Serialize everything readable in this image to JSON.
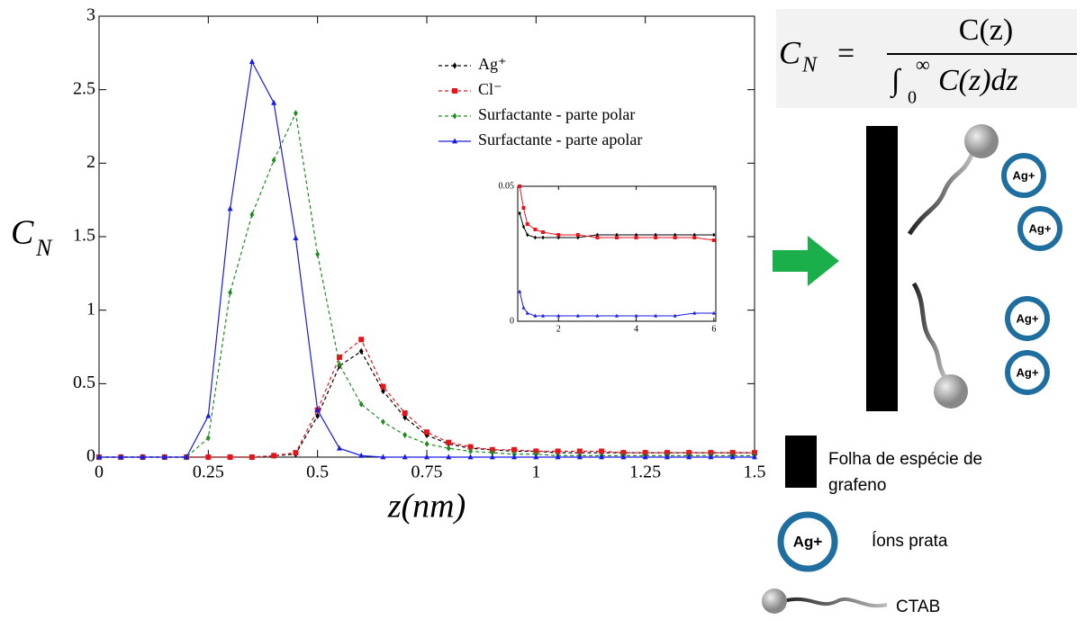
{
  "chart_data": [
    {
      "type": "line",
      "x_label": "z(nm)",
      "y_label": {
        "main": "C",
        "sub": "N"
      },
      "x": [
        0,
        0.05,
        0.1,
        0.15,
        0.2,
        0.25,
        0.3,
        0.35,
        0.4,
        0.45,
        0.5,
        0.55,
        0.6,
        0.65,
        0.7,
        0.75,
        0.8,
        0.85,
        0.9,
        0.95,
        1,
        1.05,
        1.1,
        1.15,
        1.2,
        1.25,
        1.3,
        1.35,
        1.4,
        1.45,
        1.5
      ],
      "series": [
        {
          "name": "Ag⁺",
          "color": "#000000",
          "dash": true,
          "marker": "diamond",
          "values": [
            0,
            0,
            0,
            0,
            0,
            0,
            0,
            0,
            0.01,
            0.02,
            0.28,
            0.62,
            0.72,
            0.45,
            0.27,
            0.15,
            0.09,
            0.06,
            0.05,
            0.04,
            0.04,
            0.03,
            0.03,
            0.03,
            0.03,
            0.03,
            0.03,
            0.03,
            0.03,
            0.03,
            0.03
          ]
        },
        {
          "name": "Cl⁻",
          "color": "#e8141c",
          "dash": true,
          "marker": "square",
          "values": [
            0,
            0,
            0,
            0,
            0,
            0,
            0,
            0,
            0.01,
            0.03,
            0.32,
            0.68,
            0.8,
            0.48,
            0.3,
            0.17,
            0.1,
            0.07,
            0.05,
            0.05,
            0.04,
            0.04,
            0.04,
            0.04,
            0.03,
            0.03,
            0.03,
            0.03,
            0.03,
            0.03,
            0.03
          ]
        },
        {
          "name": "Surfactante - parte polar",
          "color": "#1e8c1e",
          "dash": true,
          "marker": "diamond",
          "values": [
            0,
            0,
            0,
            0,
            0,
            0.13,
            1.12,
            1.65,
            2.02,
            2.34,
            1.38,
            0.63,
            0.36,
            0.24,
            0.15,
            0.09,
            0.06,
            0.04,
            0.03,
            0.02,
            0.02,
            0.01,
            0.01,
            0.01,
            0.01,
            0.01,
            0.01,
            0.01,
            0.01,
            0.01,
            0.01
          ]
        },
        {
          "name": "Surfactante - parte apolar",
          "color": "#1a1ae6",
          "dash": false,
          "marker": "triangle",
          "values": [
            0,
            0,
            0,
            0,
            0,
            0.28,
            1.69,
            2.69,
            2.41,
            1.49,
            0.32,
            0.06,
            0.01,
            0,
            0,
            0,
            0,
            0,
            0,
            0,
            0,
            0,
            0,
            0,
            0,
            0,
            0,
            0,
            0,
            0,
            0
          ]
        }
      ],
      "xlim": [
        0,
        1.5
      ],
      "ylim": [
        0,
        3
      ],
      "xticks": [
        0,
        0.25,
        0.5,
        0.75,
        1,
        1.25,
        1.5
      ],
      "yticks": [
        0,
        0.5,
        1,
        1.5,
        2,
        2.5,
        3
      ],
      "legend": "top-right"
    },
    {
      "type": "line",
      "x": [
        1.0,
        1.1,
        1.2,
        1.4,
        1.6,
        2,
        2.5,
        3,
        3.5,
        4,
        4.5,
        5,
        5.5,
        6
      ],
      "series": [
        {
          "color": "#000000",
          "marker": "diamond",
          "values": [
            0.04,
            0.035,
            0.032,
            0.031,
            0.031,
            0.031,
            0.031,
            0.032,
            0.032,
            0.032,
            0.032,
            0.032,
            0.032,
            0.032
          ]
        },
        {
          "color": "#e8141c",
          "marker": "square",
          "values": [
            0.05,
            0.042,
            0.036,
            0.034,
            0.033,
            0.032,
            0.032,
            0.031,
            0.031,
            0.031,
            0.031,
            0.031,
            0.031,
            0.03
          ]
        },
        {
          "color": "#1a1ae6",
          "marker": "triangle",
          "values": [
            0.011,
            0.005,
            0.003,
            0.002,
            0.002,
            0.002,
            0.002,
            0.002,
            0.002,
            0.002,
            0.002,
            0.002,
            0.003,
            0.003
          ]
        }
      ],
      "xlim": [
        0.95,
        6.05
      ],
      "ylim": [
        0,
        0.05
      ],
      "xticks": [
        2,
        4,
        6
      ],
      "yticks": [
        0,
        0.05
      ]
    }
  ],
  "diagram": {
    "equation": {
      "lhs": "C",
      "lhs_sub": "N",
      "equals": "=",
      "numerator": "C(z)",
      "integral": "∫",
      "lower": "0",
      "upper": "∞",
      "denominator": "C(z)dz"
    },
    "ions": [
      "Ag+",
      "Ag+",
      "Ag+",
      "Ag+"
    ],
    "legend": {
      "sheet": "Folha de espécie de grafeno",
      "ion_symbol": "Ag+",
      "ions": "Íons prata",
      "ctab": "CTAB"
    }
  }
}
